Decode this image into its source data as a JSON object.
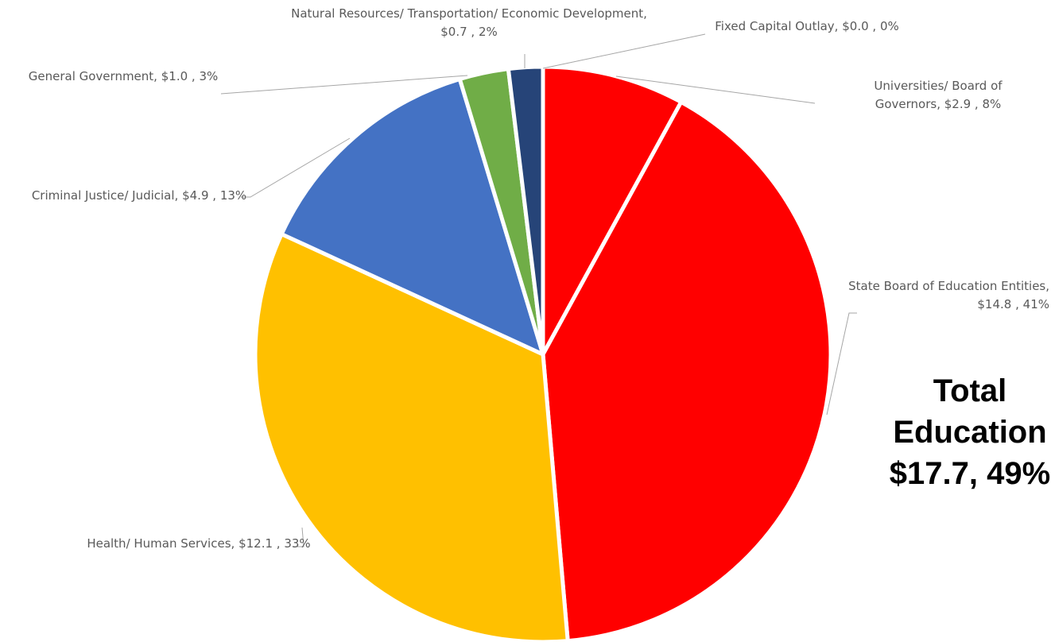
{
  "chart_data": {
    "type": "pie",
    "categories": [
      "Fixed Capital Outlay,",
      "Universities/ Board of Governors,",
      "State Board of Education Entities,",
      "Health/ Human Services,",
      "Criminal Justice/ Judicial,",
      "General Government,",
      "Natural Resources/ Transportation/ Economic Development,"
    ],
    "values": [
      0.0,
      2.9,
      14.8,
      12.1,
      4.9,
      1.0,
      0.7
    ],
    "value_labels": [
      "$0.0 ,",
      "$2.9 ,",
      "$14.8 ,",
      "$12.1 ,",
      "$4.9 ,",
      "$1.0 ,",
      "$0.7 ,"
    ],
    "percents": [
      0,
      8,
      41,
      33,
      13,
      3,
      2
    ],
    "percent_labels": [
      "0%",
      "8%",
      "41%",
      "33%",
      "13%",
      "3%",
      "2%"
    ],
    "colors": [
      "#ff0000",
      "#ff0000",
      "#ff0000",
      "#ffc000",
      "#4472c4",
      "#70ad47",
      "#264478"
    ],
    "annotation": "Total Education $17.7, 49%"
  }
}
